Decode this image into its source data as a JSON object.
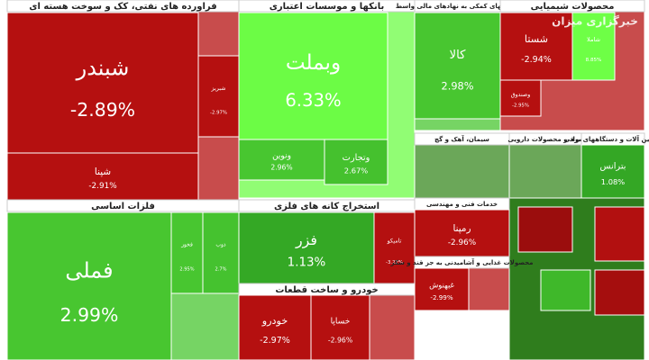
{
  "chart_data": {
    "type": "treemap",
    "watermark": "خبرگزاری میزان",
    "sectors": [
      {
        "name": "فراورده های نفتی، کک و سوخت هسته ای",
        "categories": [
          "شبندر",
          "شپنا",
          "شبریز"
        ],
        "values": [
          -2.89,
          -2.91,
          -2.97
        ],
        "value_labels": [
          "-2.89%",
          "-2.91%",
          "-2.97%"
        ]
      },
      {
        "name": "بانکها و موسسات اعتباری",
        "categories": [
          "وبملت",
          "ونوین",
          "وتجارت"
        ],
        "values": [
          6.33,
          2.96,
          2.67
        ],
        "value_labels": [
          "6.33%",
          "2.96%",
          "2.67%"
        ]
      },
      {
        "name": "فعالیتهای کمکی به نهادهای مالی واسط",
        "categories": [
          "کالا"
        ],
        "values": [
          2.98
        ],
        "value_labels": [
          "2.98%"
        ]
      },
      {
        "name": "محصولات شیمیایی",
        "categories": [
          "شستا",
          "شاملا",
          "وصندوق"
        ],
        "values": [
          -2.94,
          8.85,
          -2.95
        ],
        "value_labels": [
          "-2.94%",
          "8.85%",
          "-2.95%"
        ]
      },
      {
        "name": "سیمان، آهک و گچ",
        "categories": [],
        "values": [],
        "value_labels": []
      },
      {
        "name": "مواد و محصولات دارویی",
        "categories": [],
        "values": [],
        "value_labels": []
      },
      {
        "name": "ماشین آلات و دستگاههای برقی",
        "categories": [
          "بترانس"
        ],
        "values": [
          1.08
        ],
        "value_labels": [
          "1.08%"
        ]
      },
      {
        "name": "فلزات اساسی",
        "categories": [
          "فملی",
          "فخوز",
          "ذوب"
        ],
        "values": [
          2.99,
          2.95,
          2.7
        ],
        "value_labels": [
          "2.99%",
          "2.95%",
          "2.7%"
        ]
      },
      {
        "name": "استخراج کانه های فلزی",
        "categories": [
          "فزر",
          "تامیکو"
        ],
        "values": [
          1.13,
          -3.22
        ],
        "value_labels": [
          "1.13%",
          "-3.22%"
        ]
      },
      {
        "name": "خودرو و ساخت قطعات",
        "categories": [
          "خودرو",
          "خساپا"
        ],
        "values": [
          -2.97,
          -2.96
        ],
        "value_labels": [
          "-2.97%",
          "-2.96%"
        ]
      },
      {
        "name": "خدمات فنی و مهندسی",
        "categories": [
          "رمپنا"
        ],
        "values": [
          -2.96
        ],
        "value_labels": [
          "-2.96%"
        ]
      },
      {
        "name": "محصولات غذایی و آشامیدنی به جز قند و شکر",
        "categories": [
          "غبهنوش"
        ],
        "values": [
          -2.99
        ],
        "value_labels": [
          "-2.99%"
        ]
      }
    ]
  }
}
